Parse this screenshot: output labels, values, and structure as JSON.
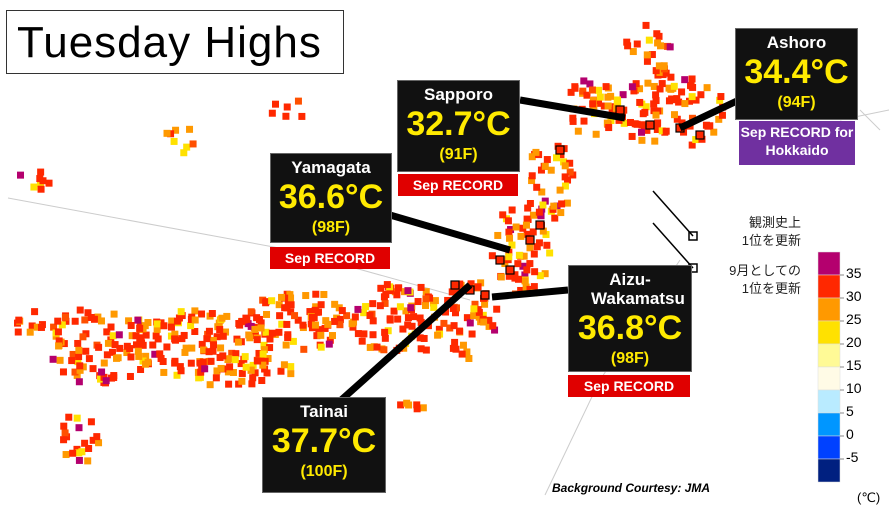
{
  "title": "Tuesday Highs",
  "callouts": [
    {
      "name": "Ashoro",
      "temp": "34.4°C",
      "temp_f": "(94F)",
      "record": "Sep RECORD for Hokkaido"
    },
    {
      "name": "Sapporo",
      "temp": "32.7°C",
      "temp_f": "(91F)",
      "record": "Sep RECORD"
    },
    {
      "name": "Yamagata",
      "temp": "36.6°C",
      "temp_f": "(98F)",
      "record": "Sep RECORD"
    },
    {
      "name": "Aizu-Wakamatsu",
      "temp": "36.8°C",
      "temp_f": "(98F)",
      "record": "Sep RECORD"
    },
    {
      "name": "Tainai",
      "temp": "37.7°C",
      "temp_f": "(100F)"
    }
  ],
  "marker_legend": [
    {
      "line1": "観測史上",
      "line2": "1位を更新"
    },
    {
      "line1": "9月としての",
      "line2": "1位を更新"
    }
  ],
  "legend": {
    "unit": "(℃)",
    "ticks": [
      35,
      30,
      25,
      20,
      15,
      10,
      5,
      0,
      -5
    ],
    "colors": [
      "#b4006e",
      "#ff2800",
      "#ff9900",
      "#ffe100",
      "#fffa96",
      "#fffbe6",
      "#b9ebff",
      "#0096ff",
      "#0041ff",
      "#002080"
    ]
  },
  "credit": "Background Courtesy: JMA"
}
